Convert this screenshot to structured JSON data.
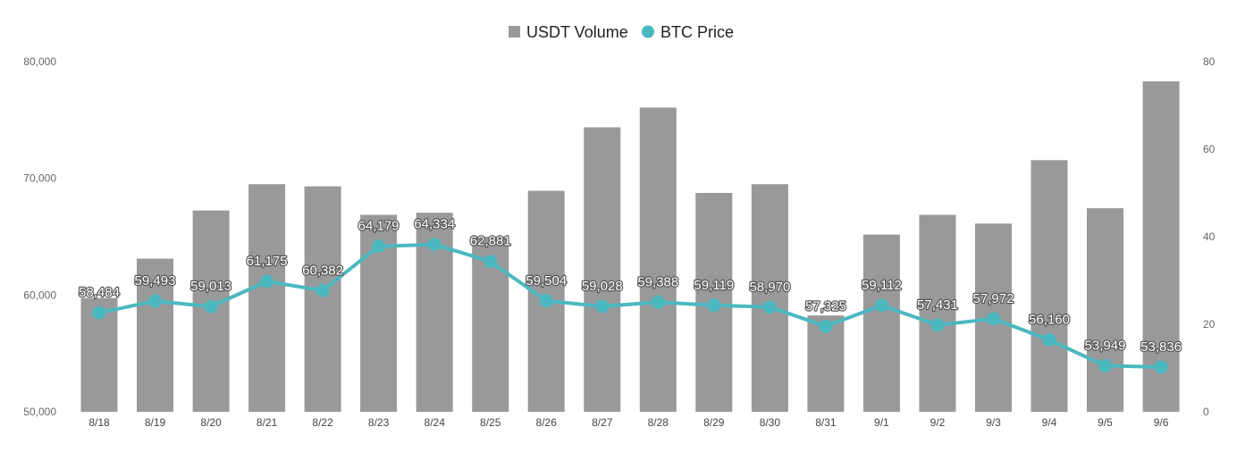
{
  "chart_data": {
    "type": "bar",
    "categories": [
      "8/18",
      "8/19",
      "8/20",
      "8/21",
      "8/22",
      "8/23",
      "8/24",
      "8/25",
      "8/26",
      "8/27",
      "8/28",
      "8/29",
      "8/30",
      "8/31",
      "9/1",
      "9/2",
      "9/3",
      "9/4",
      "9/5",
      "9/6"
    ],
    "series": [
      {
        "name": "USDT Volume",
        "type": "bar",
        "axis": "right",
        "color": "#999999",
        "values": [
          26,
          35,
          46,
          52,
          51.5,
          45,
          45.5,
          40,
          50.5,
          65,
          69.5,
          50,
          52,
          22,
          40.5,
          45,
          43,
          57.5,
          46.5,
          75.5
        ]
      },
      {
        "name": "BTC Price",
        "type": "line",
        "axis": "left",
        "color": "#4bb8c0",
        "values": [
          58484,
          59493,
          59013,
          61175,
          60382,
          64179,
          64334,
          62881,
          59504,
          59028,
          59388,
          59119,
          58970,
          57325,
          59112,
          57431,
          57972,
          56160,
          53949,
          53836
        ],
        "labels": [
          "58,484",
          "59,493",
          "59,013",
          "61,175",
          "60,382",
          "64,179",
          "64,334",
          "62,881",
          "59,504",
          "59,028",
          "59,388",
          "59,119",
          "58,970",
          "57,325",
          "59,112",
          "57,431",
          "57,972",
          "56,160",
          "53,949",
          "53,836"
        ]
      }
    ],
    "left_axis": {
      "min": 50000,
      "max": 80000,
      "ticks": [
        "50,000",
        "60,000",
        "70,000",
        "80,000"
      ],
      "tick_values": [
        50000,
        60000,
        70000,
        80000
      ]
    },
    "right_axis": {
      "min": 0,
      "max": 80,
      "ticks": [
        "0",
        "20",
        "40",
        "60",
        "80"
      ],
      "tick_values": [
        0,
        20,
        40,
        60,
        80
      ]
    },
    "legend": {
      "position": "top-center",
      "items": [
        "USDT Volume",
        "BTC Price"
      ]
    },
    "grid": false
  }
}
